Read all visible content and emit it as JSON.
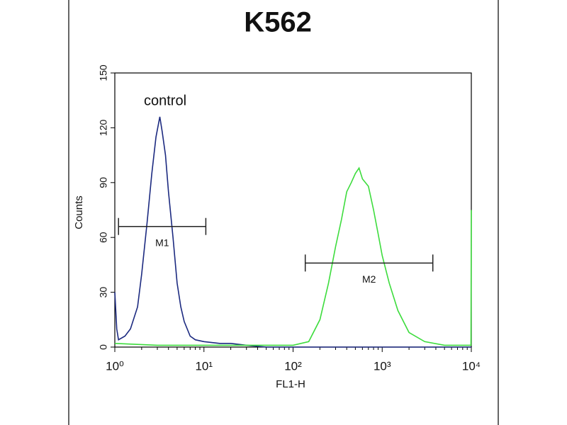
{
  "chart_data": {
    "type": "line",
    "title": "K562",
    "xlabel": "FL1-H",
    "ylabel": "Counts",
    "xscale": "log",
    "xlim": [
      1,
      10000
    ],
    "xticks": [
      {
        "value": 1,
        "label": "10⁰"
      },
      {
        "value": 10,
        "label": "10¹"
      },
      {
        "value": 100,
        "label": "10²"
      },
      {
        "value": 1000,
        "label": "10³"
      },
      {
        "value": 10000,
        "label": "10⁴"
      }
    ],
    "ylim": [
      0,
      150
    ],
    "yticks": [
      0,
      30,
      60,
      90,
      120,
      150
    ],
    "series": [
      {
        "name": "control",
        "color": "#1c2a80",
        "x": [
          1,
          1.05,
          1.1,
          1.3,
          1.5,
          1.8,
          2,
          2.3,
          2.6,
          2.9,
          3.2,
          3.4,
          3.7,
          4,
          4.5,
          5,
          5.5,
          6,
          7,
          8,
          10,
          15,
          20,
          30,
          50,
          100,
          300,
          1000,
          3000,
          10000
        ],
        "values": [
          30,
          10,
          4,
          6,
          10,
          22,
          40,
          68,
          95,
          115,
          126,
          118,
          105,
          85,
          60,
          35,
          22,
          14,
          6,
          4,
          3,
          2,
          2,
          1,
          0,
          0,
          0,
          0,
          0,
          0
        ]
      },
      {
        "color": "#3ddc3d",
        "x": [
          1,
          3,
          10,
          30,
          100,
          150,
          200,
          250,
          300,
          350,
          400,
          450,
          500,
          550,
          600,
          700,
          800,
          900,
          1000,
          1200,
          1500,
          2000,
          3000,
          5000,
          9900,
          10000
        ],
        "values": [
          2,
          1,
          1,
          1,
          1,
          3,
          15,
          35,
          55,
          70,
          85,
          90,
          95,
          98,
          92,
          88,
          75,
          62,
          50,
          35,
          20,
          8,
          3,
          1,
          1,
          75
        ]
      }
    ],
    "annotations": [
      {
        "text": "M1",
        "range": [
          1.1,
          10.5
        ],
        "y": 66
      },
      {
        "text": "M2",
        "range": [
          137,
          3700
        ],
        "y": 46
      }
    ]
  }
}
